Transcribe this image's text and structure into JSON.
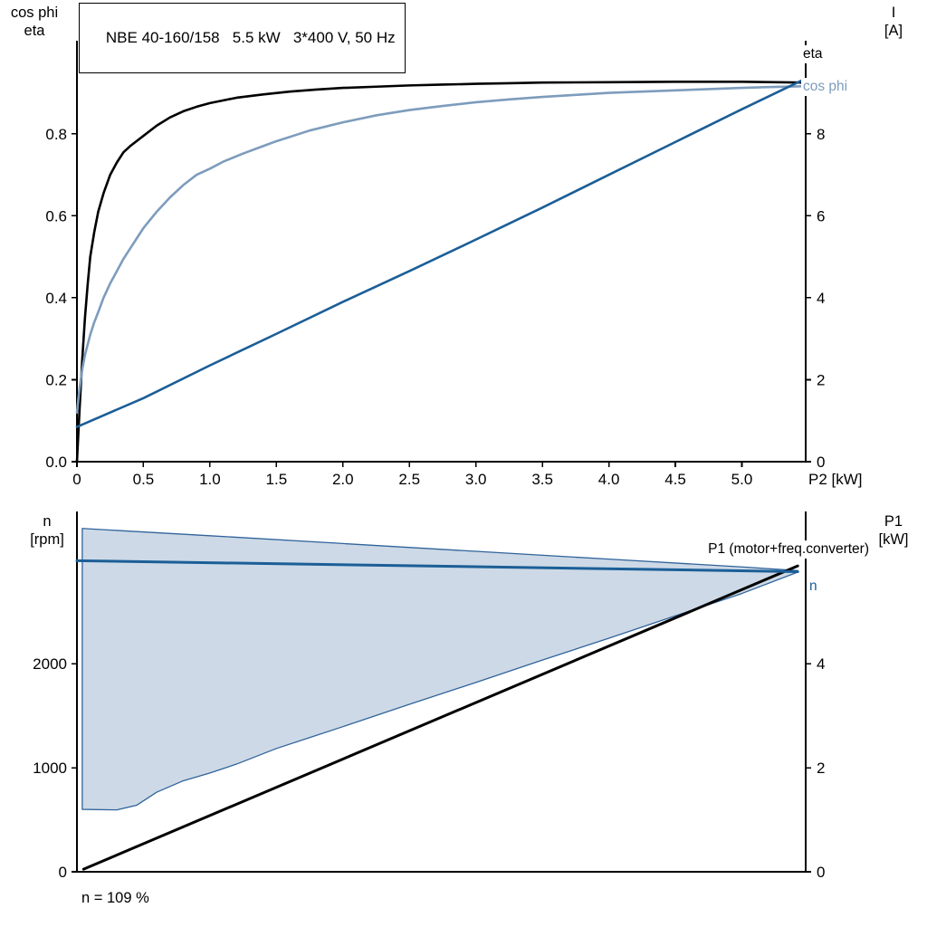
{
  "header": {
    "title": "NBE 40-160/158   5.5 kW   3*400 V, 50 Hz"
  },
  "top_chart": {
    "y_left_title": [
      "cos phi",
      "eta"
    ],
    "y_right_title": [
      "I",
      "[A]"
    ],
    "x_title": "P2 [kW]"
  },
  "bottom_chart": {
    "y_left_title": [
      "n",
      "[rpm]"
    ],
    "y_right_title": [
      "P1",
      "[kW]"
    ]
  },
  "colors": {
    "black": "#000000",
    "dark_blue": "#1b5e97",
    "steel_blue": "#7d9cbc",
    "envelope_fill": "#cdd9e6",
    "envelope_stroke": "#30639b"
  },
  "chart_data": [
    {
      "type": "line",
      "title": "NBE 40-160/158   5.5 kW   3*400 V, 50 Hz",
      "xlabel": "P2 [kW]",
      "ylabel_left": "cos phi / eta",
      "ylabel_right": "I [A]",
      "xlim": [
        0,
        5.48
      ],
      "ylim_left": [
        0,
        1.005
      ],
      "ylim_right": [
        0,
        10.05
      ],
      "grid": false,
      "x_ticks": {
        "values": [
          0,
          0.5,
          1,
          1.5,
          2,
          2.5,
          3,
          3.5,
          4,
          4.5,
          5
        ],
        "labels": [
          "0",
          "0.5",
          "1.0",
          "1.5",
          "2.0",
          "2.5",
          "3.0",
          "3.5",
          "4.0",
          "4.5",
          "5.0"
        ]
      },
      "y_ticks_left": {
        "values": [
          0,
          0.2,
          0.4,
          0.6,
          0.8
        ],
        "labels": [
          "0.0",
          "0.2",
          "0.4",
          "0.6",
          "0.8"
        ]
      },
      "y_ticks_right": {
        "values": [
          0,
          2,
          4,
          6,
          8
        ],
        "labels": [
          "0",
          "2",
          "4",
          "6",
          "8"
        ]
      },
      "series": [
        {
          "name": "eta",
          "axis": "left",
          "color": "black",
          "width": 2.6,
          "points": [
            [
              0,
              0
            ],
            [
              0.02,
              0.13
            ],
            [
              0.04,
              0.25
            ],
            [
              0.06,
              0.35
            ],
            [
              0.08,
              0.43
            ],
            [
              0.1,
              0.5
            ],
            [
              0.13,
              0.56
            ],
            [
              0.16,
              0.61
            ],
            [
              0.2,
              0.655
            ],
            [
              0.25,
              0.7
            ],
            [
              0.3,
              0.73
            ],
            [
              0.35,
              0.755
            ],
            [
              0.4,
              0.77
            ],
            [
              0.5,
              0.795
            ],
            [
              0.6,
              0.82
            ],
            [
              0.7,
              0.84
            ],
            [
              0.8,
              0.855
            ],
            [
              0.9,
              0.866
            ],
            [
              1.0,
              0.875
            ],
            [
              1.2,
              0.888
            ],
            [
              1.4,
              0.896
            ],
            [
              1.6,
              0.903
            ],
            [
              1.8,
              0.908
            ],
            [
              2.0,
              0.912
            ],
            [
              2.25,
              0.915
            ],
            [
              2.5,
              0.918
            ],
            [
              2.75,
              0.92
            ],
            [
              3.0,
              0.922
            ],
            [
              3.25,
              0.9235
            ],
            [
              3.5,
              0.925
            ],
            [
              4.0,
              0.926
            ],
            [
              4.5,
              0.927
            ],
            [
              5.0,
              0.927
            ],
            [
              5.45,
              0.925
            ]
          ]
        },
        {
          "name": "cos phi",
          "axis": "left",
          "color": "steel_blue",
          "width": 2.6,
          "points": [
            [
              0,
              0.12
            ],
            [
              0.02,
              0.18
            ],
            [
              0.04,
              0.225
            ],
            [
              0.06,
              0.26
            ],
            [
              0.08,
              0.285
            ],
            [
              0.1,
              0.31
            ],
            [
              0.13,
              0.34
            ],
            [
              0.16,
              0.365
            ],
            [
              0.2,
              0.4
            ],
            [
              0.25,
              0.435
            ],
            [
              0.3,
              0.465
            ],
            [
              0.35,
              0.495
            ],
            [
              0.4,
              0.52
            ],
            [
              0.45,
              0.545
            ],
            [
              0.5,
              0.57
            ],
            [
              0.6,
              0.61
            ],
            [
              0.7,
              0.645
            ],
            [
              0.8,
              0.675
            ],
            [
              0.9,
              0.7
            ],
            [
              1.0,
              0.715
            ],
            [
              1.1,
              0.732
            ],
            [
              1.25,
              0.752
            ],
            [
              1.4,
              0.77
            ],
            [
              1.5,
              0.782
            ],
            [
              1.75,
              0.808
            ],
            [
              2.0,
              0.828
            ],
            [
              2.25,
              0.845
            ],
            [
              2.5,
              0.858
            ],
            [
              2.75,
              0.868
            ],
            [
              3.0,
              0.877
            ],
            [
              3.25,
              0.884
            ],
            [
              3.5,
              0.89
            ],
            [
              3.75,
              0.895
            ],
            [
              4.0,
              0.9
            ],
            [
              4.25,
              0.903
            ],
            [
              4.5,
              0.906
            ],
            [
              4.75,
              0.909
            ],
            [
              5.0,
              0.912
            ],
            [
              5.2,
              0.914
            ],
            [
              5.45,
              0.916
            ]
          ]
        },
        {
          "name": "I",
          "axis": "right",
          "color": "dark_blue",
          "width": 2.6,
          "points": [
            [
              0,
              0.85
            ],
            [
              0.5,
              1.55
            ],
            [
              1.0,
              2.35
            ],
            [
              1.5,
              3.12
            ],
            [
              2.0,
              3.9
            ],
            [
              2.5,
              4.65
            ],
            [
              3.0,
              5.42
            ],
            [
              3.5,
              6.2
            ],
            [
              4.0,
              7.0
            ],
            [
              4.5,
              7.8
            ],
            [
              5.0,
              8.6
            ],
            [
              5.45,
              9.3
            ]
          ]
        }
      ]
    },
    {
      "type": "line+area",
      "title": "",
      "xlabel": "",
      "ylabel_left": "n [rpm]",
      "ylabel_right": "P1 [kW]",
      "xlim": [
        0,
        5.48
      ],
      "ylim_left": [
        0,
        3350
      ],
      "ylim_right": [
        0,
        6.7
      ],
      "grid": false,
      "annotation": "n = 109 %",
      "x_ticks": {
        "values": [],
        "labels": []
      },
      "y_ticks_left": {
        "values": [
          0,
          1000,
          2000
        ],
        "labels": [
          "0",
          "1000",
          "2000"
        ]
      },
      "y_ticks_right": {
        "values": [
          0,
          2,
          4
        ],
        "labels": [
          "0",
          "2",
          "4"
        ]
      },
      "series": [
        {
          "name": "speed range envelope",
          "type": "area",
          "axis": "left",
          "fill": "envelope_fill",
          "stroke": "envelope_stroke",
          "width": 1.3,
          "upper_points": [
            [
              0.04,
              3300
            ],
            [
              1,
              3230
            ],
            [
              2,
              3155
            ],
            [
              3,
              3080
            ],
            [
              4,
              3005
            ],
            [
              5,
              2930
            ],
            [
              5.42,
              2895
            ]
          ],
          "lower_points": [
            [
              0.04,
              600
            ],
            [
              0.3,
              595
            ],
            [
              0.45,
              640
            ],
            [
              0.6,
              765
            ],
            [
              0.8,
              875
            ],
            [
              1,
              950
            ],
            [
              1.2,
              1035
            ],
            [
              1.5,
              1185
            ],
            [
              1.75,
              1290
            ],
            [
              2,
              1395
            ],
            [
              2.5,
              1610
            ],
            [
              3,
              1820
            ],
            [
              3.5,
              2035
            ],
            [
              4,
              2245
            ],
            [
              4.5,
              2460
            ],
            [
              5,
              2675
            ],
            [
              5.42,
              2880
            ]
          ]
        },
        {
          "name": "P1 (motor+freq.converter)",
          "type": "line",
          "axis": "right",
          "color": "black",
          "width": 3,
          "points": [
            [
              0.05,
              0.05
            ],
            [
              5.42,
              5.88
            ]
          ]
        },
        {
          "name": "n",
          "type": "line",
          "axis": "left",
          "color": "dark_blue",
          "width": 3,
          "points": [
            [
              0,
              2990
            ],
            [
              5.42,
              2885
            ]
          ]
        }
      ]
    }
  ]
}
